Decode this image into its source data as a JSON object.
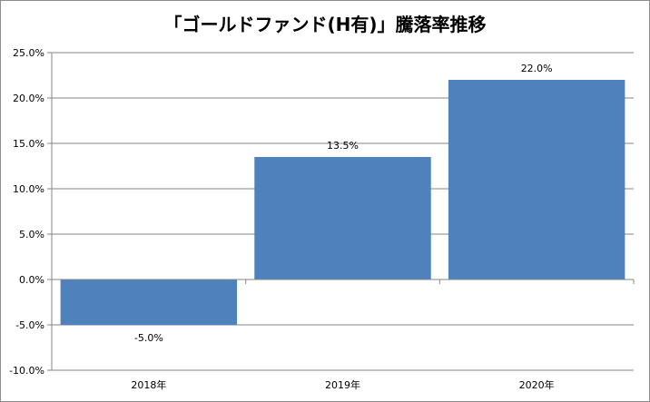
{
  "chart_data": {
    "type": "bar",
    "title": "「ゴールドファンド(H有)」騰落率推移",
    "categories": [
      "2018年",
      "2019年",
      "2020年"
    ],
    "values": [
      -5.0,
      13.5,
      22.0
    ],
    "data_labels": [
      "-5.0%",
      "13.5%",
      "22.0%"
    ],
    "y_ticks": [
      "25.0%",
      "20.0%",
      "15.0%",
      "10.0%",
      "5.0%",
      "0.0%",
      "-5.0%",
      "-10.0%"
    ],
    "ylim": [
      -10,
      25
    ],
    "grid": true,
    "legend": "none",
    "xlabel": "",
    "ylabel": "",
    "colors": {
      "bar": "#4f81bd",
      "grid": "#868686",
      "axis": "#868686"
    }
  }
}
